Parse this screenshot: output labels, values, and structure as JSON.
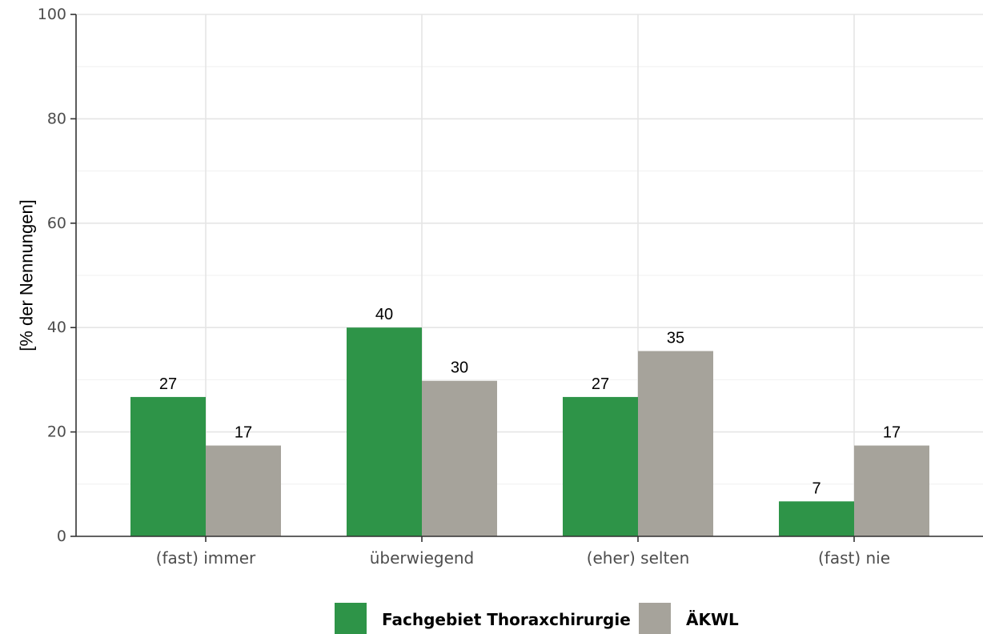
{
  "chart_data": {
    "type": "bar",
    "ylabel": "[% der Nennungen]",
    "xlabel": "",
    "ylim": [
      0,
      100
    ],
    "yticks": [
      0,
      20,
      40,
      60,
      80,
      100
    ],
    "categories": [
      "(fast) immer",
      "überwiegend",
      "(eher) selten",
      "(fast) nie"
    ],
    "series": [
      {
        "name": "Fachgebiet Thoraxchirurgie",
        "color": "#2e9448",
        "values": [
          26.7,
          40,
          26.7,
          6.7
        ],
        "labels": [
          "27",
          "40",
          "27",
          "7"
        ]
      },
      {
        "name": "ÄKWL",
        "color": "#a6a39b",
        "values": [
          17.4,
          29.8,
          35.5,
          17.4
        ],
        "labels": [
          "17",
          "30",
          "35",
          "17"
        ]
      }
    ],
    "grid": true,
    "legend_position": "bottom"
  }
}
